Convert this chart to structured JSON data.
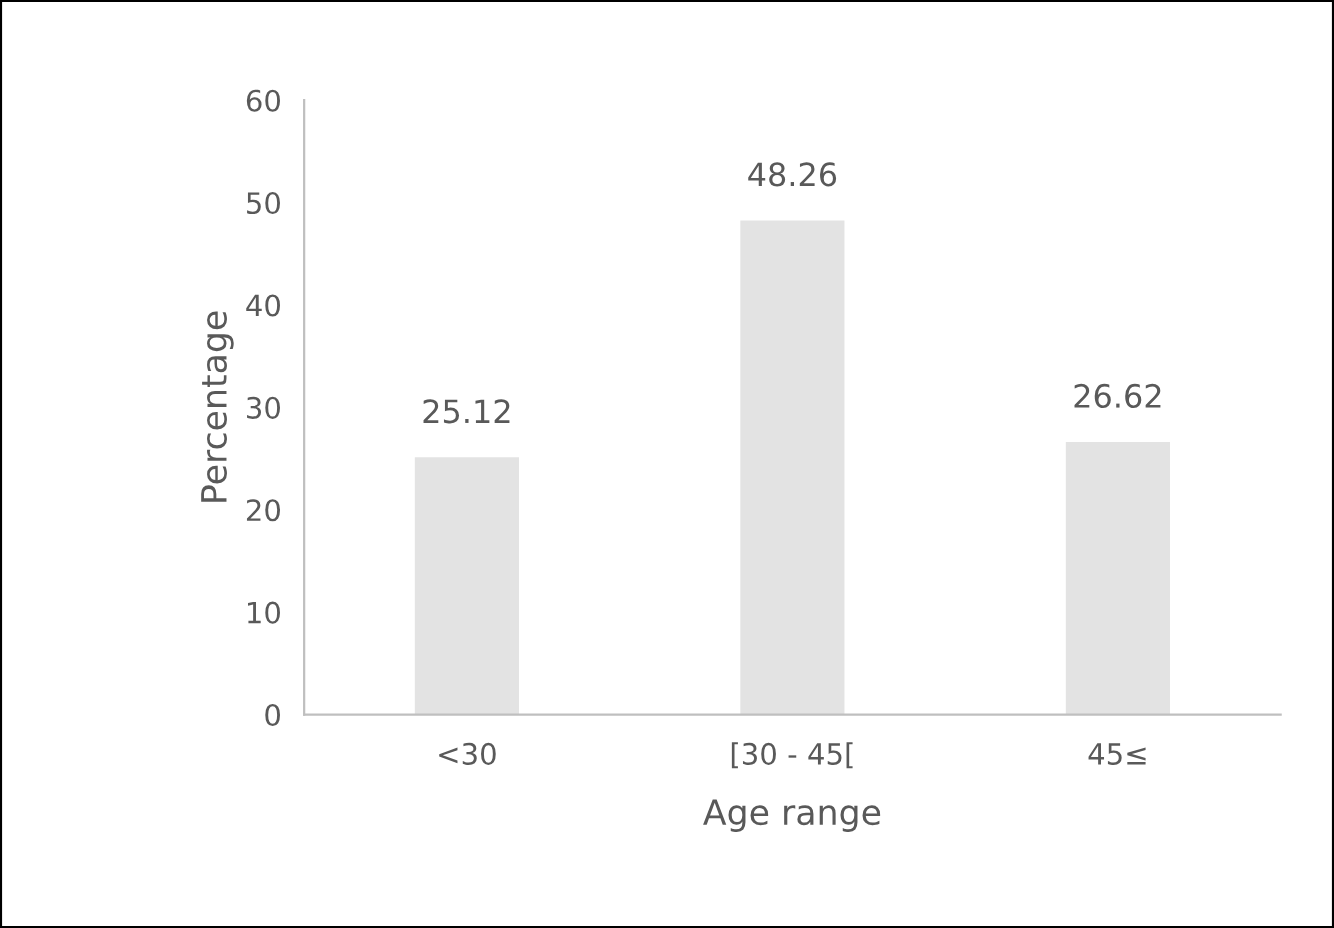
{
  "chart_data": {
    "type": "bar",
    "xlabel": "Age range",
    "ylabel": "Percentage",
    "categories": [
      "<30",
      "[30 - 45[",
      "45≤"
    ],
    "values": [
      25.12,
      48.26,
      26.62
    ],
    "color": "#e3e3e3",
    "ylim": [
      0,
      60
    ],
    "yticks": [
      0,
      10,
      20,
      30,
      40,
      50,
      60
    ],
    "data_labels": true,
    "grid": false,
    "legend": false
  }
}
